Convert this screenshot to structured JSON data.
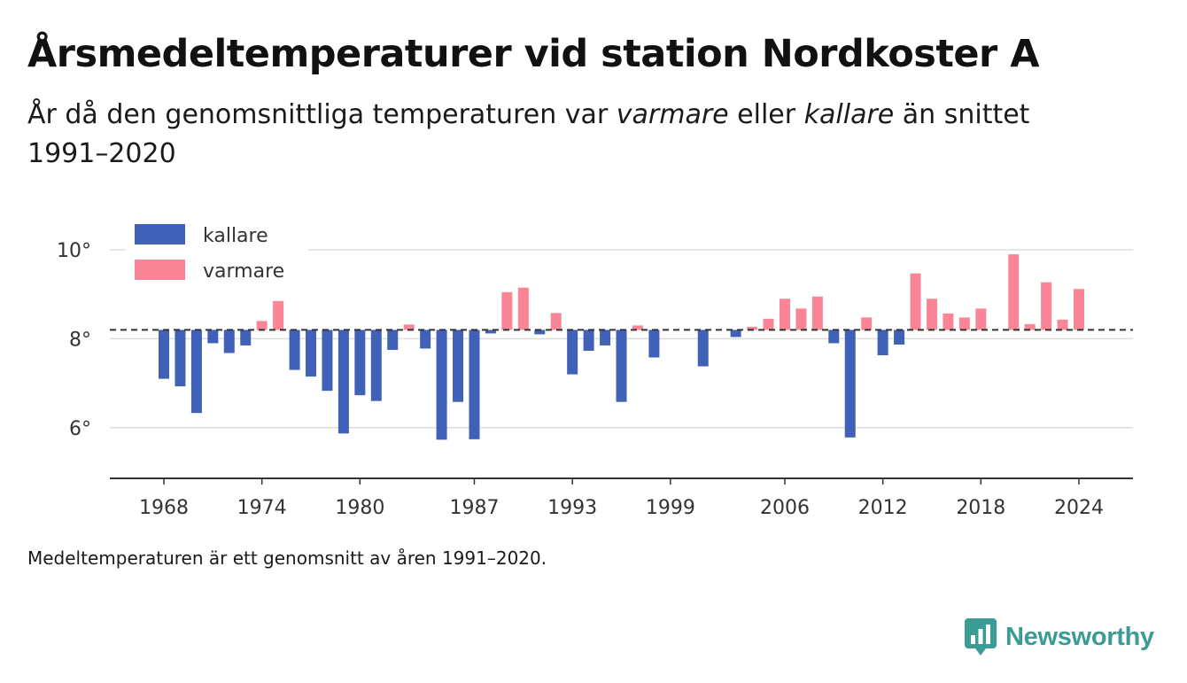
{
  "header": {
    "title": "Årsmedeltemperaturer vid station Nordkoster A",
    "subtitle_pre": "År då den genomsnittliga temperaturen var ",
    "subtitle_warm": "varmare",
    "subtitle_mid": " eller ",
    "subtitle_cold": "kallare",
    "subtitle_post": " än snittet 1991–2020"
  },
  "footer": {
    "note": "Medeltemperaturen är ett genomsnitt av åren 1991–2020.",
    "brand": "Newsworthy"
  },
  "colors": {
    "cold": "#3f62b8",
    "warm": "#f98596",
    "baseline": "#333333",
    "grid": "#dddddd",
    "axis": "#333333",
    "brand": "#3a9c94"
  },
  "chart_data": {
    "type": "bar",
    "baseline": 8.2,
    "ylim": [
      4.9,
      10.3
    ],
    "xlim": [
      1964.5,
      2027
    ],
    "yticks": [
      6,
      8,
      10
    ],
    "ytick_labels": [
      "6°",
      "8°",
      "10°"
    ],
    "xticks": [
      1968,
      1974,
      1980,
      1987,
      1993,
      1999,
      2006,
      2012,
      2018,
      2024
    ],
    "xtick_labels": [
      "1968",
      "1974",
      "1980",
      "1987",
      "1993",
      "1999",
      "2006",
      "2012",
      "2018",
      "2024"
    ],
    "legend": {
      "position": "top-left",
      "items": [
        {
          "label": "kallare",
          "key": "cold"
        },
        {
          "label": "varmare",
          "key": "warm"
        }
      ]
    },
    "grid": true,
    "years": [
      1968,
      1969,
      1970,
      1971,
      1972,
      1973,
      1974,
      1975,
      1976,
      1977,
      1978,
      1979,
      1980,
      1981,
      1982,
      1983,
      1984,
      1985,
      1986,
      1987,
      1988,
      1989,
      1990,
      1991,
      1992,
      1993,
      1994,
      1995,
      1996,
      1997,
      1998,
      2001,
      2003,
      2004,
      2005,
      2006,
      2007,
      2008,
      2009,
      2010,
      2011,
      2012,
      2013,
      2014,
      2015,
      2016,
      2017,
      2018,
      2020,
      2021,
      2022,
      2023,
      2024
    ],
    "values": [
      7.1,
      6.93,
      6.33,
      7.9,
      7.68,
      7.85,
      8.4,
      8.85,
      7.3,
      7.15,
      6.83,
      5.87,
      6.73,
      6.6,
      7.75,
      8.32,
      7.78,
      5.73,
      6.58,
      5.74,
      8.12,
      9.05,
      9.15,
      8.1,
      8.58,
      7.2,
      7.73,
      7.85,
      6.58,
      8.3,
      7.58,
      7.38,
      8.04,
      8.27,
      8.45,
      8.9,
      8.68,
      8.95,
      7.9,
      5.78,
      8.48,
      7.63,
      7.87,
      9.47,
      8.9,
      8.57,
      8.48,
      8.68,
      9.9,
      8.33,
      9.27,
      8.43,
      9.12
    ]
  }
}
